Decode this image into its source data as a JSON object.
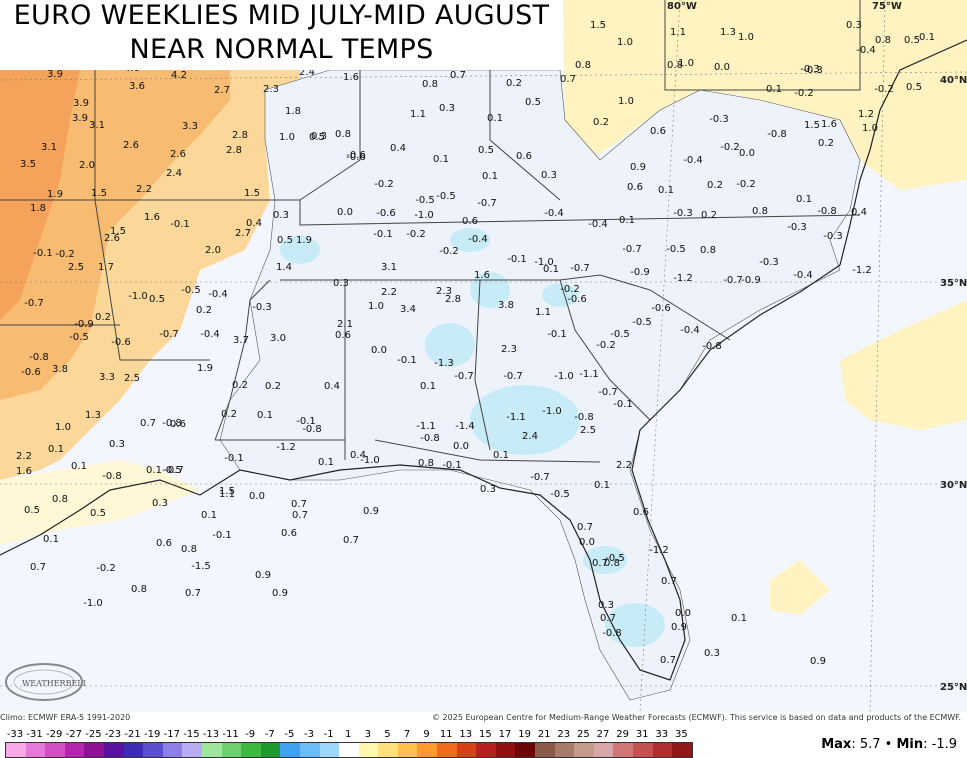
{
  "title": {
    "line1": "EURO WEEKLIES MID JULY-MID AUGUST",
    "line2": "NEAR NORMAL TEMPS"
  },
  "map": {
    "lon_labels": [
      "80°W",
      "75°W"
    ],
    "lat_labels": [
      "40°N",
      "35°N",
      "30°N",
      "25°N"
    ],
    "anomaly_values": [
      "3.9",
      "4.0",
      "4.2",
      "2.4",
      "1.6",
      "0.7",
      "3.6",
      "2.7",
      "2.3",
      "0.8",
      "0.2",
      "0.7",
      "0.8",
      "1.5",
      "1.0",
      "1.1",
      "1.3",
      "1.0",
      "0.3",
      "0.1",
      "0.5",
      "0.8",
      "1.0",
      "-0.3",
      "0.3",
      "0.1",
      "0.5",
      "-0.4",
      "0.8",
      "0.0",
      "-0.3",
      "-0.2",
      "0.5",
      "3.9",
      "3.1",
      "3.3",
      "1.8",
      "1.1",
      "0.3",
      "0.2",
      "1.0",
      "0.6",
      "-0.3",
      "0.1",
      "-0.2",
      "1.2",
      "3.9",
      "2.6",
      "2.6",
      "2.8",
      "2.8",
      "1.0",
      "0.5",
      "0.8",
      "-0.6",
      "0.4",
      "0.6",
      "0.5",
      "-0.8",
      "-0.2",
      "0.0",
      "1.5",
      "0.2",
      "1.0",
      "3.1",
      "2.0",
      "2.4",
      "-0.6",
      "0.1",
      "0.1",
      "0.3",
      "0.9",
      "-0.4",
      "3.5",
      "1.5",
      "2.2",
      "1.5",
      "-0.2",
      "-0.5",
      "-0.5",
      "-0.7",
      "0.6",
      "0.1",
      "0.2",
      "-0.2",
      "0.1",
      "1.6",
      "1.9",
      "1.8",
      "1.6",
      "-0.1",
      "0.3",
      "0.0",
      "-0.6",
      "-1.0",
      "0.6",
      "-0.4",
      "-0.3",
      "-0.4",
      "0.1",
      "0.2",
      "0.8",
      "1.5",
      "2.6",
      "2.7",
      "0.4",
      "0.5",
      "-0.1",
      "-0.2",
      "-0.4",
      "-0.8",
      "-0.3",
      "-0.3",
      "0.4",
      "-0.1",
      "-0.2",
      "2.5",
      "1.7",
      "2.0",
      "1.9",
      "1.4",
      "-0.2",
      "-0.1",
      "-1.0",
      "-0.7",
      "-0.5",
      "0.8",
      "-0.3",
      "-1.2",
      "-0.7",
      "-1.0",
      "0.5",
      "-0.5",
      "-0.4",
      "-0.3",
      "0.3",
      "3.1",
      "2.2",
      "2.3",
      "1.6",
      "0.1",
      "-0.7",
      "-0.9",
      "-1.2",
      "-0.7",
      "-0.9",
      "-0.4",
      "-0.9",
      "0.2",
      "-0.5",
      "0.2",
      "1.0",
      "3.4",
      "2.8",
      "3.8",
      "1.1",
      "-0.6",
      "-0.2",
      "-0.6",
      "-0.8",
      "-0.6",
      "-0.7",
      "-0.4",
      "3.7",
      "3.0",
      "2.1",
      "0.6",
      "0.0",
      "-0.1",
      "-0.1",
      "-0.5",
      "-0.5",
      "-0.4",
      "-0.8",
      "-0.6",
      "3.8",
      "3.3",
      "2.5",
      "1.9",
      "0.2",
      "0.2",
      "0.4",
      "0.1",
      "-1.3",
      "-0.7",
      "-0.7",
      "-1.0",
      "-1.1",
      "-0.7",
      "-0.1",
      "-0.2",
      "2.3",
      "1.3",
      "0.7",
      "0.6",
      "0.2",
      "0.1",
      "-0.1",
      "-0.8",
      "-1.1",
      "-1.4",
      "-1.1",
      "-1.0",
      "-0.8",
      "2.5",
      "1.0",
      "0.3",
      "-0.8",
      "-1.2",
      "2.4",
      "2.2",
      "0.1",
      "-0.1",
      "-0.7",
      "0.4",
      "-1.0",
      "-0.8",
      "0.0",
      "2.2",
      "1.6",
      "0.1",
      "0.1",
      "-0.5",
      "0.1",
      "0.8",
      "-0.1",
      "0.1",
      "-0.7",
      "-0.8",
      "1.5",
      "0.0",
      "0.3",
      "-0.5",
      "0.1",
      "0.8",
      "1.1",
      "0.7",
      "0.9",
      "0.3",
      "0.1",
      "0.5",
      "0.7",
      "0.6",
      "0.5",
      "0.1",
      "-0.1",
      "0.6",
      "0.7",
      "0.7",
      "0.0",
      "-1.2",
      "0.6",
      "0.8",
      "-1.5",
      "-0.5",
      "0.7",
      "0.8",
      "0.7",
      "-0.2",
      "0.9",
      "0.7",
      "0.8",
      "0.7",
      "0.9",
      "-1.0",
      "0.3",
      "0.0",
      "-0.8",
      "0.7",
      "0.9",
      "0.1",
      "0.3",
      "0.7",
      "0.9"
    ]
  },
  "footer": {
    "climo": "Climo: ECMWF ERA-5 1991-2020",
    "copyright": "© 2025 European Centre for Medium-Range Weather Forecasts (ECMWF). This service is based on data and products of the ECMWF.",
    "scale_ticks": [
      "-33",
      "-31",
      "-29",
      "-27",
      "-25",
      "-23",
      "-21",
      "-19",
      "-17",
      "-15",
      "-13",
      "-11",
      "-9",
      "-7",
      "-5",
      "-3",
      "-1",
      "1",
      "3",
      "5",
      "7",
      "9",
      "11",
      "13",
      "15",
      "17",
      "19",
      "21",
      "23",
      "25",
      "27",
      "29",
      "31",
      "33",
      "35"
    ],
    "scale_colors": [
      "#f7a8e6",
      "#e77ad8",
      "#d24fc6",
      "#b326ad",
      "#8e1392",
      "#5a12a1",
      "#3d2cb6",
      "#5b4fd0",
      "#8c7fe6",
      "#b9acf2",
      "#9ee59e",
      "#6fd06f",
      "#3fb83f",
      "#1f9a2f",
      "#3fa2f0",
      "#6bbcf7",
      "#9fd6fb",
      "#ffffff",
      "#fff7b0",
      "#ffe07a",
      "#ffc14d",
      "#ff9a2e",
      "#f26a1b",
      "#d8401a",
      "#b81f1f",
      "#8e1010",
      "#6b0707",
      "#8a5a4a",
      "#a87a6a",
      "#c49a8a",
      "#d8a6a6",
      "#d07878",
      "#c45050",
      "#b03030",
      "#901818"
    ],
    "max_label": "Max",
    "max_value": "5.7",
    "min_label": "Min",
    "min_value": "-1.9",
    "logo_text": "WEATHERBELL"
  }
}
